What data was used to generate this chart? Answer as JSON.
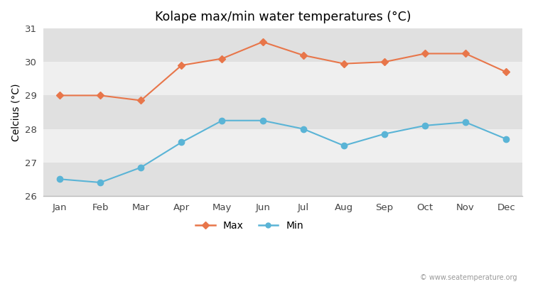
{
  "title": "Kolape max/min water temperatures (°C)",
  "ylabel": "Celcius (°C)",
  "months": [
    "Jan",
    "Feb",
    "Mar",
    "Apr",
    "May",
    "Jun",
    "Jul",
    "Aug",
    "Sep",
    "Oct",
    "Nov",
    "Dec"
  ],
  "max_temps": [
    29.0,
    29.0,
    28.85,
    29.9,
    30.1,
    30.6,
    30.2,
    29.95,
    30.0,
    30.25,
    30.25,
    29.7
  ],
  "min_temps": [
    26.5,
    26.4,
    26.85,
    27.6,
    28.25,
    28.25,
    28.0,
    27.5,
    27.85,
    28.1,
    28.2,
    27.7
  ],
  "max_color": "#e8764a",
  "min_color": "#5ab4d6",
  "fig_bg_color": "#ffffff",
  "band_light": "#efefef",
  "band_dark": "#e0e0e0",
  "ylim_min": 26.0,
  "ylim_max": 31.0,
  "yticks": [
    26,
    27,
    28,
    29,
    30,
    31
  ],
  "watermark": "© www.seatemperature.org"
}
